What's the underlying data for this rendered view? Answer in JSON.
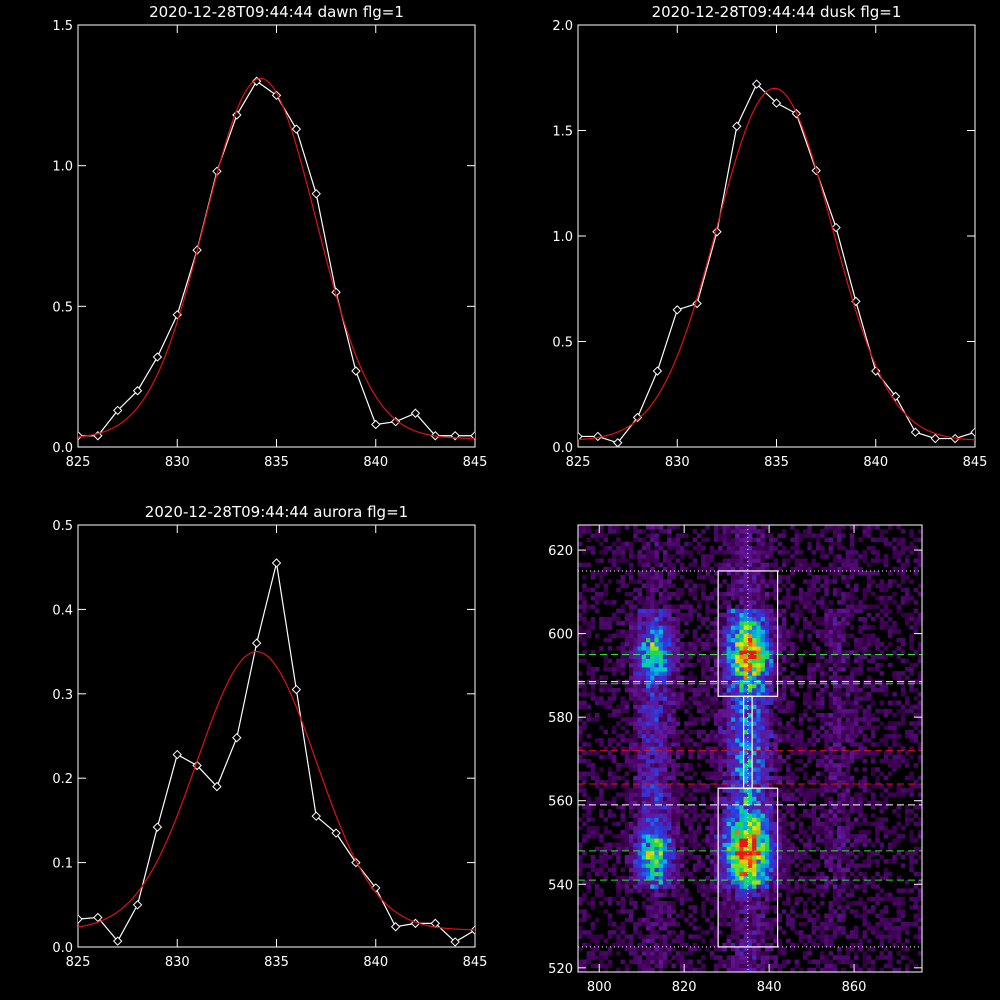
{
  "chart_data": [
    {
      "type": "line",
      "title": "2020-12-28T09:44:44 dawn flg=1",
      "xlabel": "",
      "ylabel": "",
      "xlim": [
        825,
        845
      ],
      "ylim": [
        0,
        1.5
      ],
      "xticks": [
        "825",
        "830",
        "835",
        "840",
        "845"
      ],
      "yticks": [
        "0.0",
        "0.5",
        "1.0",
        "1.5"
      ],
      "series": [
        {
          "color": "#ffffff",
          "marker": "diamond",
          "x": [
            825,
            826,
            827,
            828,
            829,
            830,
            831,
            832,
            833,
            834,
            835,
            836,
            837,
            838,
            839,
            840,
            841,
            842,
            843,
            844,
            845
          ],
          "y": [
            0.04,
            0.04,
            0.13,
            0.2,
            0.32,
            0.47,
            0.7,
            0.98,
            1.18,
            1.3,
            1.25,
            1.13,
            0.9,
            0.55,
            0.27,
            0.08,
            0.09,
            0.12,
            0.04,
            0.04,
            0.04
          ]
        },
        {
          "color": "#e01010",
          "marker": "none",
          "fit": "gaussian",
          "amp": 1.28,
          "center": 834.2,
          "sigma": 2.8,
          "offset": 0.03
        }
      ]
    },
    {
      "type": "line",
      "title": "2020-12-28T09:44:44 dusk flg=1",
      "xlabel": "",
      "ylabel": "",
      "xlim": [
        825,
        845
      ],
      "ylim": [
        0,
        2.0
      ],
      "xticks": [
        "825",
        "830",
        "835",
        "840",
        "845"
      ],
      "yticks": [
        "0.0",
        "0.5",
        "1.0",
        "1.5",
        "2.0"
      ],
      "series": [
        {
          "color": "#ffffff",
          "marker": "diamond",
          "x": [
            825,
            826,
            827,
            828,
            829,
            830,
            831,
            832,
            833,
            834,
            835,
            836,
            837,
            838,
            839,
            840,
            841,
            842,
            843,
            844,
            845
          ],
          "y": [
            0.05,
            0.05,
            0.02,
            0.14,
            0.36,
            0.65,
            0.68,
            1.02,
            1.52,
            1.72,
            1.63,
            1.58,
            1.31,
            1.04,
            0.69,
            0.36,
            0.24,
            0.07,
            0.04,
            0.04,
            0.07
          ]
        },
        {
          "color": "#e01010",
          "marker": "none",
          "fit": "gaussian",
          "amp": 1.67,
          "center": 834.9,
          "sigma": 2.9,
          "offset": 0.03
        }
      ]
    },
    {
      "type": "line",
      "title": "2020-12-28T09:44:44 aurora flg=1",
      "xlabel": "",
      "ylabel": "",
      "xlim": [
        825,
        845
      ],
      "ylim": [
        0,
        0.5
      ],
      "xticks": [
        "825",
        "830",
        "835",
        "840",
        "845"
      ],
      "yticks": [
        "0.0",
        "0.1",
        "0.2",
        "0.3",
        "0.4",
        "0.5"
      ],
      "series": [
        {
          "color": "#ffffff",
          "marker": "diamond",
          "x": [
            825,
            826,
            827,
            828,
            829,
            830,
            831,
            832,
            833,
            834,
            835,
            836,
            837,
            838,
            839,
            840,
            841,
            842,
            843,
            844,
            845
          ],
          "y": [
            0.033,
            0.035,
            0.007,
            0.05,
            0.142,
            0.228,
            0.215,
            0.19,
            0.248,
            0.36,
            0.455,
            0.305,
            0.155,
            0.135,
            0.1,
            0.07,
            0.024,
            0.028,
            0.028,
            0.006,
            0.02
          ]
        },
        {
          "color": "#e01010",
          "marker": "none",
          "fit": "gaussian",
          "amp": 0.33,
          "center": 834.0,
          "sigma": 3.0,
          "offset": 0.02
        }
      ]
    },
    {
      "type": "heatmap",
      "title": "",
      "xlabel": "",
      "ylabel": "",
      "xlim": [
        795,
        876
      ],
      "ylim": [
        519,
        626
      ],
      "xticks": [
        "800",
        "820",
        "840",
        "860"
      ],
      "yticks": [
        "520",
        "540",
        "560",
        "580",
        "600",
        "620"
      ],
      "colormap": "rainbow-on-black",
      "emission_columns": [
        {
          "x": 813,
          "width": 3.5,
          "strength": 0.6
        },
        {
          "x": 835,
          "width": 4.0,
          "strength": 1.0
        },
        {
          "x": 856,
          "width": 3.5,
          "strength": 0.25
        }
      ],
      "hot_spots": [
        {
          "x": 835,
          "y": 595,
          "sx": 3.5,
          "sy": 4,
          "v": 0.85
        },
        {
          "x": 835,
          "y": 548,
          "sx": 4,
          "sy": 5,
          "v": 1.0
        },
        {
          "x": 813,
          "y": 547,
          "sx": 3,
          "sy": 4,
          "v": 0.75
        },
        {
          "x": 813,
          "y": 595,
          "sx": 3,
          "sy": 4,
          "v": 0.6
        }
      ],
      "boxes": [
        {
          "x": [
            828,
            842
          ],
          "y": [
            585,
            615
          ],
          "color": "#ffffff"
        },
        {
          "x": [
            828,
            842
          ],
          "y": [
            525,
            563
          ],
          "color": "#ffffff"
        },
        {
          "x": [
            834,
            836
          ],
          "y": [
            563,
            585
          ],
          "color": "#ffffff"
        }
      ],
      "hlines": [
        {
          "y": 615,
          "color": "#ffffff",
          "style": "dotted"
        },
        {
          "y": 525,
          "color": "#ffffff",
          "style": "dotted"
        },
        {
          "y": 595,
          "color": "#33dd33",
          "style": "dashed"
        },
        {
          "y": 588,
          "color": "#33dd33",
          "style": "dashed"
        },
        {
          "y": 588.5,
          "color": "#ffffff",
          "style": "dashed"
        },
        {
          "y": 572,
          "color": "#e01010",
          "style": "dashed"
        },
        {
          "y": 564,
          "color": "#e01010",
          "style": "dashed"
        },
        {
          "y": 559,
          "color": "#ffffff",
          "style": "dashed"
        },
        {
          "y": 548,
          "color": "#33dd33",
          "style": "dashed"
        },
        {
          "y": 541,
          "color": "#33dd33",
          "style": "dashed"
        }
      ],
      "vlines": [
        {
          "x": 835,
          "color": "#ffffff",
          "style": "dotted"
        }
      ]
    }
  ]
}
